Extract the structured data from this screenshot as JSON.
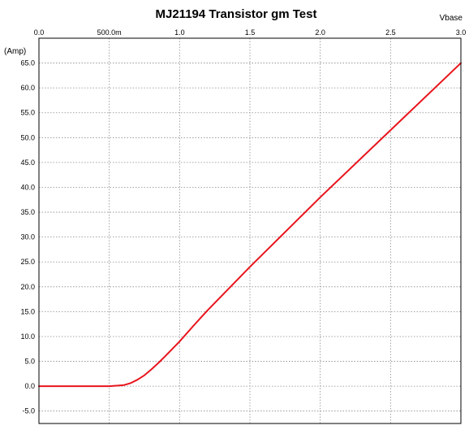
{
  "chart_data": {
    "type": "line",
    "title": "MJ21194 Transistor gm Test",
    "xlabel": "Vbase",
    "ylabel": "(Amp)",
    "xlim": [
      0,
      3.0
    ],
    "ylim": [
      -7.5,
      70
    ],
    "x_ticks": [
      "0.0",
      "500.0m",
      "1.0",
      "1.5",
      "2.0",
      "2.5",
      "3.0"
    ],
    "y_ticks": [
      "-5.0",
      "0.0",
      "5.0",
      "10.0",
      "15.0",
      "20.0",
      "25.0",
      "30.0",
      "35.0",
      "40.0",
      "45.0",
      "50.0",
      "55.0",
      "60.0",
      "65.0"
    ],
    "grid": true,
    "series": [
      {
        "color": "#e8141c",
        "x": [
          0.0,
          0.5,
          0.6,
          0.65,
          0.7,
          0.75,
          0.8,
          0.85,
          0.9,
          1.0,
          1.1,
          1.2,
          1.5,
          2.0,
          2.5,
          3.0
        ],
        "y": [
          0.0,
          0.0,
          0.2,
          0.6,
          1.3,
          2.2,
          3.4,
          4.7,
          6.1,
          9.0,
          12.2,
          15.3,
          24.0,
          38.0,
          51.5,
          65.0
        ]
      }
    ]
  }
}
